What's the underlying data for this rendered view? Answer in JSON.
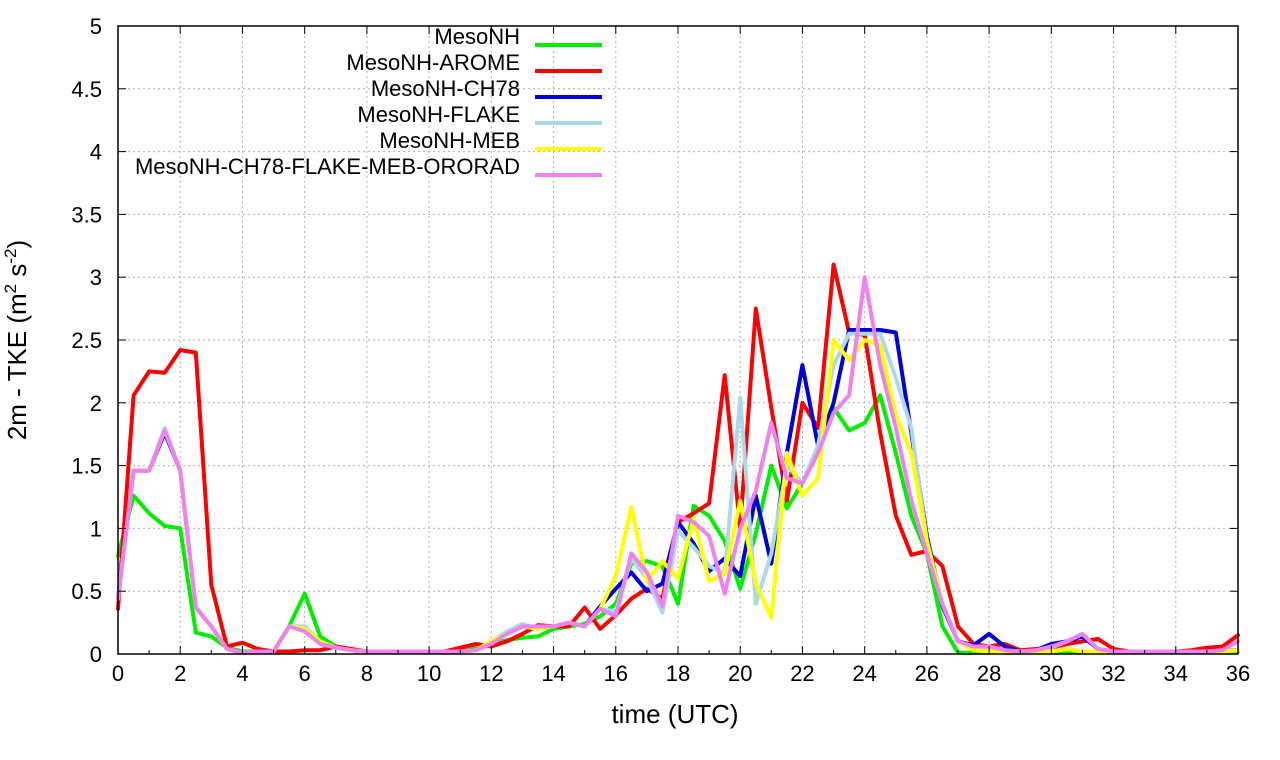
{
  "chart_data": {
    "type": "line",
    "title": "",
    "xlabel": "time (UTC)",
    "ylabel_main": "2m - TKE (m",
    "ylabel_sup1": "2",
    "ylabel_mid": " s",
    "ylabel_sup2": "-2",
    "ylabel_end": ")",
    "xlim": [
      0,
      36
    ],
    "ylim": [
      0,
      5
    ],
    "xticks": [
      0,
      2,
      4,
      6,
      8,
      10,
      12,
      14,
      16,
      18,
      20,
      22,
      24,
      26,
      28,
      30,
      32,
      34,
      36
    ],
    "xtick_labels": [
      "0",
      "2",
      "4",
      "6",
      "8",
      "10",
      "12",
      "14",
      "16",
      "18",
      "20",
      "22",
      "24",
      "26",
      "28",
      "30",
      "32",
      "34",
      "36"
    ],
    "yticks": [
      0,
      0.5,
      1,
      1.5,
      2,
      2.5,
      3,
      3.5,
      4,
      4.5,
      5
    ],
    "ytick_labels": [
      "0",
      "0.5",
      "1",
      "1.5",
      "2",
      "2.5",
      "3",
      "3.5",
      "4",
      "4.5",
      "5"
    ],
    "grid": true,
    "legend_position": "top-left",
    "x": [
      0,
      0.5,
      1,
      1.5,
      2,
      2.5,
      3,
      3.5,
      4,
      4.5,
      5,
      5.5,
      6,
      6.5,
      7,
      7.5,
      8,
      8.5,
      9,
      9.5,
      10,
      10.5,
      11,
      11.5,
      12,
      12.5,
      13,
      13.5,
      14,
      14.5,
      15,
      15.5,
      16,
      16.5,
      17,
      17.5,
      18,
      18.5,
      19,
      19.5,
      20,
      20.5,
      21,
      21.5,
      22,
      22.5,
      23,
      23.5,
      24,
      24.5,
      25,
      25.5,
      26,
      26.5,
      27,
      27.5,
      28,
      28.5,
      29,
      29.5,
      30,
      30.5,
      31,
      31.5,
      32,
      32.5,
      33,
      33.5,
      34,
      34.5,
      35,
      35.5,
      36
    ],
    "series": [
      {
        "name": "MesoNH",
        "color": "#00ee00",
        "values": [
          0.78,
          1.26,
          1.12,
          1.02,
          1.0,
          0.17,
          0.14,
          0.05,
          0.02,
          0.02,
          0.02,
          0.22,
          0.48,
          0.14,
          0.06,
          0.03,
          0.02,
          0.02,
          0.02,
          0.02,
          0.02,
          0.02,
          0.03,
          0.05,
          0.08,
          0.11,
          0.13,
          0.14,
          0.2,
          0.22,
          0.24,
          0.3,
          0.4,
          0.72,
          0.74,
          0.7,
          0.4,
          1.18,
          1.1,
          0.9,
          0.52,
          0.96,
          1.5,
          1.16,
          1.36,
          1.6,
          1.96,
          1.78,
          1.84,
          2.06,
          1.6,
          1.1,
          0.8,
          0.22,
          0.01,
          0.01,
          0.02,
          0.01,
          0.01,
          0.02,
          0.02,
          0.02,
          0.02,
          0.02,
          0.02,
          0.02,
          0.02,
          0.02,
          0.02,
          0.02,
          0.02,
          0.02,
          0.02
        ]
      },
      {
        "name": "MesoNH-AROME",
        "color": "#ff0000",
        "values": [
          0.36,
          2.06,
          2.25,
          2.24,
          2.42,
          2.4,
          0.55,
          0.06,
          0.09,
          0.04,
          0.02,
          0.02,
          0.03,
          0.03,
          0.06,
          0.04,
          0.02,
          0.02,
          0.02,
          0.02,
          0.02,
          0.02,
          0.05,
          0.08,
          0.06,
          0.1,
          0.16,
          0.23,
          0.22,
          0.22,
          0.37,
          0.2,
          0.31,
          0.44,
          0.52,
          0.44,
          1.05,
          1.12,
          1.2,
          2.22,
          1.0,
          2.75,
          1.96,
          1.22,
          2.0,
          1.8,
          3.1,
          2.56,
          2.54,
          1.76,
          1.1,
          0.79,
          0.82,
          0.7,
          0.22,
          0.08,
          0.06,
          0.08,
          0.03,
          0.04,
          0.05,
          0.08,
          0.1,
          0.12,
          0.04,
          0.02,
          0.02,
          0.02,
          0.02,
          0.03,
          0.05,
          0.06,
          0.15
        ]
      },
      {
        "name": "MesoNH-CH78",
        "color": "#0000dd",
        "values": [
          0.45,
          1.46,
          1.46,
          1.76,
          1.46,
          0.37,
          0.22,
          0.04,
          0.01,
          0.02,
          0.02,
          0.22,
          0.2,
          0.1,
          0.05,
          0.03,
          0.02,
          0.02,
          0.02,
          0.02,
          0.02,
          0.02,
          0.02,
          0.03,
          0.1,
          0.16,
          0.22,
          0.2,
          0.22,
          0.25,
          0.22,
          0.38,
          0.52,
          0.65,
          0.5,
          0.56,
          1.05,
          0.88,
          0.66,
          0.76,
          0.62,
          1.26,
          0.72,
          1.6,
          2.3,
          1.66,
          2.0,
          2.58,
          2.58,
          2.58,
          2.56,
          1.76,
          0.94,
          0.38,
          0.1,
          0.07,
          0.16,
          0.06,
          0.02,
          0.03,
          0.08,
          0.1,
          0.14,
          0.04,
          0.02,
          0.02,
          0.02,
          0.02,
          0.02,
          0.02,
          0.02,
          0.03,
          0.03
        ]
      },
      {
        "name": "MesoNH-FLAKE",
        "color": "#add8e6",
        "values": [
          0.44,
          1.46,
          1.46,
          1.8,
          1.46,
          0.37,
          0.22,
          0.04,
          0.01,
          0.02,
          0.02,
          0.22,
          0.22,
          0.1,
          0.05,
          0.03,
          0.02,
          0.02,
          0.02,
          0.02,
          0.02,
          0.02,
          0.02,
          0.03,
          0.1,
          0.18,
          0.24,
          0.2,
          0.22,
          0.25,
          0.22,
          0.36,
          0.34,
          0.76,
          0.6,
          0.33,
          0.98,
          0.85,
          0.7,
          0.64,
          2.04,
          0.4,
          0.8,
          1.5,
          1.36,
          1.66,
          2.3,
          2.55,
          2.55,
          2.55,
          2.2,
          1.8,
          0.9,
          0.4,
          0.1,
          0.04,
          0.03,
          0.03,
          0.02,
          0.03,
          0.05,
          0.1,
          0.16,
          0.04,
          0.02,
          0.02,
          0.02,
          0.02,
          0.02,
          0.02,
          0.02,
          0.03,
          0.03
        ]
      },
      {
        "name": "MesoNH-MEB",
        "color": "#ffff00",
        "values": [
          0.44,
          1.46,
          1.46,
          1.78,
          1.46,
          0.37,
          0.22,
          0.04,
          0.01,
          0.02,
          0.02,
          0.22,
          0.2,
          0.1,
          0.05,
          0.03,
          0.02,
          0.02,
          0.02,
          0.02,
          0.02,
          0.02,
          0.02,
          0.03,
          0.1,
          0.16,
          0.22,
          0.2,
          0.22,
          0.25,
          0.22,
          0.36,
          0.62,
          1.17,
          0.58,
          0.74,
          0.6,
          1.08,
          0.58,
          0.64,
          1.22,
          0.56,
          0.29,
          1.6,
          1.26,
          1.4,
          2.5,
          2.34,
          2.5,
          2.46,
          1.9,
          1.6,
          0.9,
          0.4,
          0.1,
          0.03,
          0.02,
          0.02,
          0.01,
          0.02,
          0.02,
          0.04,
          0.02,
          0.02,
          0.02,
          0.02,
          0.02,
          0.02,
          0.02,
          0.02,
          0.02,
          0.02,
          0.03
        ]
      },
      {
        "name": "MesoNH-CH78-FLAKE-MEB-ORORAD",
        "color": "#ee82ee",
        "values": [
          0.44,
          1.46,
          1.46,
          1.78,
          1.46,
          0.37,
          0.22,
          0.04,
          0.01,
          0.02,
          0.02,
          0.22,
          0.18,
          0.08,
          0.05,
          0.03,
          0.02,
          0.02,
          0.02,
          0.02,
          0.02,
          0.02,
          0.02,
          0.03,
          0.08,
          0.16,
          0.22,
          0.22,
          0.22,
          0.25,
          0.22,
          0.36,
          0.3,
          0.8,
          0.65,
          0.38,
          1.1,
          1.05,
          0.94,
          0.48,
          1.0,
          1.3,
          1.84,
          1.4,
          1.36,
          1.6,
          1.92,
          2.06,
          3.0,
          2.3,
          1.8,
          1.22,
          0.8,
          0.4,
          0.1,
          0.06,
          0.06,
          0.03,
          0.02,
          0.03,
          0.06,
          0.1,
          0.16,
          0.04,
          0.02,
          0.02,
          0.02,
          0.02,
          0.02,
          0.02,
          0.02,
          0.03,
          0.1
        ]
      }
    ]
  }
}
